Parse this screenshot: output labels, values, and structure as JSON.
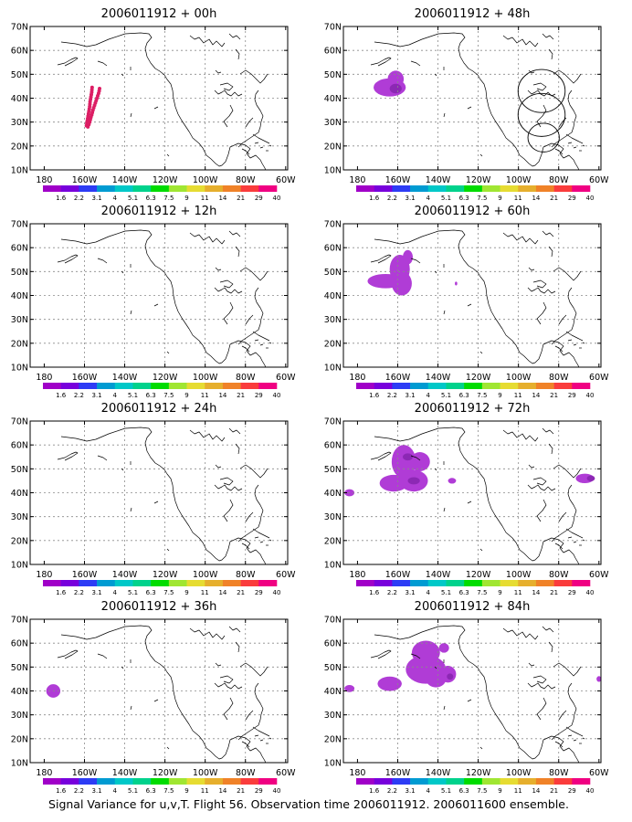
{
  "footer": "Signal Variance for u,v,T. Flight 56. Observation time 2006011912. 2006011600 ensemble.",
  "lat_labels": [
    "10N",
    "20N",
    "30N",
    "40N",
    "50N",
    "60N",
    "70N"
  ],
  "lon_labels": [
    "180",
    "160W",
    "140W",
    "120W",
    "100W",
    "80W",
    "60W"
  ],
  "colorbar": {
    "labels": [
      "1.6",
      "2.2",
      "3.1",
      "4",
      "5.1",
      "6.3",
      "7.5",
      "9",
      "11",
      "14",
      "21",
      "29",
      "40"
    ],
    "colors": [
      "#a000c8",
      "#7800dc",
      "#2d3cf5",
      "#009bd2",
      "#00c8c8",
      "#00d28c",
      "#00dc00",
      "#a0e632",
      "#e6dc32",
      "#e6af2d",
      "#f08228",
      "#fa3c3c",
      "#f00082"
    ]
  },
  "colors": {
    "blob_light": "#b03cd6",
    "blob_dark": "#8c28b4",
    "track": "#dc1e64",
    "coast": "#000000",
    "grid": "#8a8a8a"
  },
  "panels": [
    {
      "id": "p00",
      "title": "2006011912 + 00h"
    },
    {
      "id": "p48",
      "title": "2006011912 + 48h"
    },
    {
      "id": "p12",
      "title": "2006011912 + 12h"
    },
    {
      "id": "p60",
      "title": "2006011912 + 60h"
    },
    {
      "id": "p24",
      "title": "2006011912 + 24h"
    },
    {
      "id": "p72",
      "title": "2006011912 + 72h"
    },
    {
      "id": "p36",
      "title": "2006011912 + 36h"
    },
    {
      "id": "p84",
      "title": "2006011912 + 84h"
    }
  ],
  "track_points_latlon": [
    [
      44,
      -152.5
    ],
    [
      43,
      -152.7
    ],
    [
      42,
      -153
    ],
    [
      41,
      -153.4
    ],
    [
      40,
      -153.8
    ],
    [
      39,
      -154.2
    ],
    [
      38,
      -154.6
    ],
    [
      37,
      -155
    ],
    [
      36,
      -155.4
    ],
    [
      35,
      -155.8
    ],
    [
      34,
      -156.1
    ],
    [
      33,
      -156.4
    ],
    [
      32,
      -156.8
    ],
    [
      31,
      -157.1
    ],
    [
      30,
      -157.4
    ],
    [
      29,
      -157.8
    ],
    [
      28,
      -158.3
    ],
    [
      44.5,
      -156.2
    ],
    [
      43.5,
      -156.3
    ],
    [
      42.5,
      -156.4
    ],
    [
      41.5,
      -156.6
    ],
    [
      40.5,
      -156.8
    ],
    [
      39.5,
      -157
    ],
    [
      38.5,
      -157.2
    ],
    [
      37.5,
      -157.3
    ],
    [
      36.5,
      -157.4
    ],
    [
      35.5,
      -157.6
    ],
    [
      34.5,
      -157.8
    ],
    [
      33.5,
      -158
    ],
    [
      32.5,
      -158.2
    ],
    [
      31.5,
      -158.4
    ],
    [
      30.5,
      -158.6
    ],
    [
      29.5,
      -158.8
    ],
    [
      28.5,
      -159
    ]
  ],
  "range_rings_latlon": [
    {
      "lat": 43,
      "lon": -88.5,
      "r_deg": 9
    },
    {
      "lat": 33,
      "lon": -88.5,
      "r_deg": 9
    },
    {
      "lat": 23.5,
      "lon": -87.5,
      "r_deg": 6
    }
  ]
}
